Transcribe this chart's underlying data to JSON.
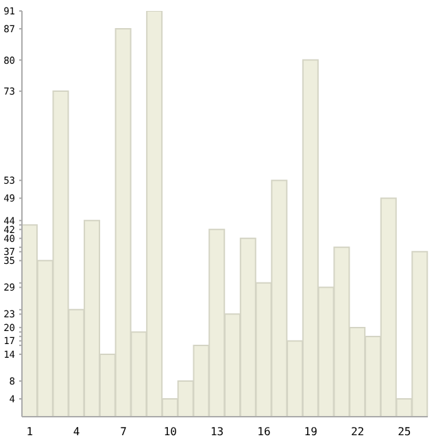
{
  "chart_data": {
    "type": "bar",
    "categories": [
      "1",
      null,
      null,
      "4",
      null,
      null,
      "7",
      null,
      null,
      "10",
      null,
      null,
      "13",
      null,
      null,
      "16",
      null,
      null,
      "19",
      null,
      null,
      "22",
      null,
      null,
      "25",
      null
    ],
    "values": [
      43,
      35,
      73,
      24,
      44,
      14,
      87,
      19,
      91,
      4,
      8,
      16,
      42,
      23,
      40,
      30,
      53,
      17,
      80,
      29,
      38,
      20,
      18,
      49,
      4,
      37
    ],
    "color": "#eeeedd",
    "ylim": [
      0,
      91
    ],
    "yticks": [
      4,
      8,
      14,
      {
        "value": 16,
        "label": null
      },
      17,
      {
        "value": 18,
        "label": null
      },
      {
        "value": 19,
        "label": null
      },
      20,
      23,
      {
        "value": 24,
        "label": null
      },
      29,
      {
        "value": 30,
        "label": null
      },
      35,
      37,
      {
        "value": 38,
        "label": null
      },
      40,
      42,
      {
        "value": 43,
        "label": null
      },
      44,
      49,
      53,
      73,
      80,
      87,
      91
    ],
    "grid": false
  }
}
